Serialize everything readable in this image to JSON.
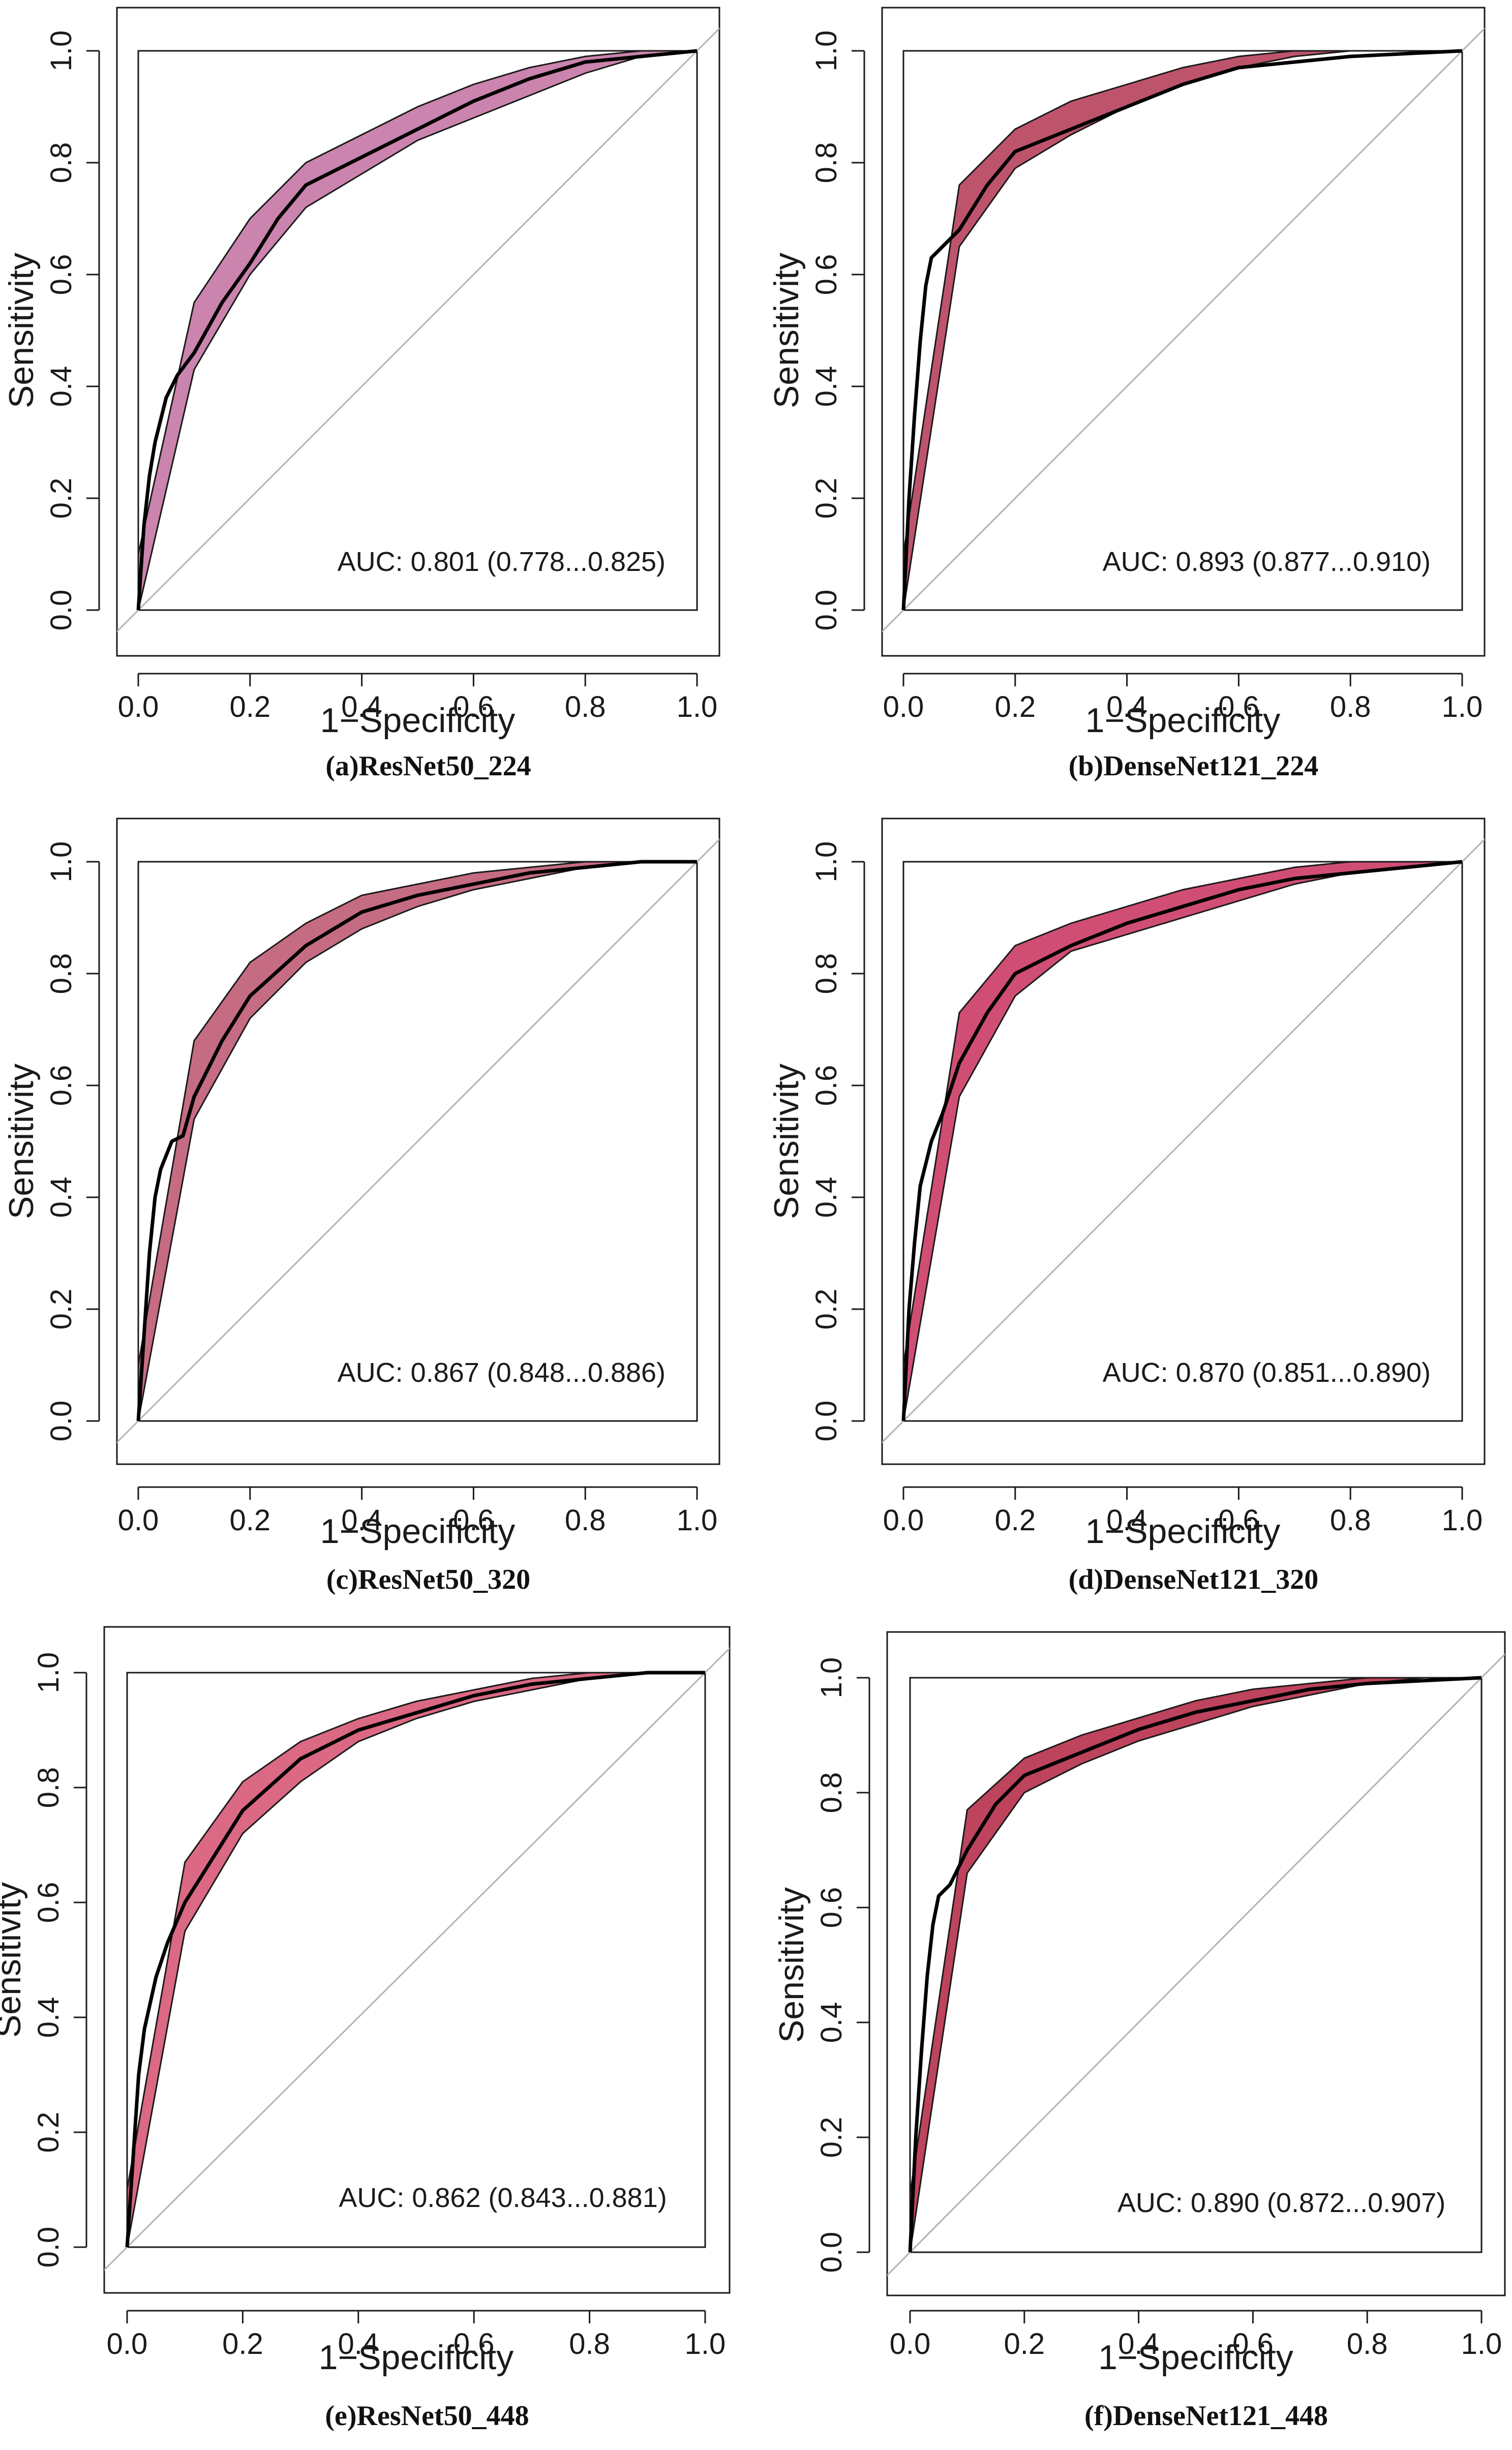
{
  "chart_data": [
    {
      "type": "line",
      "caption": "(a)ResNet50_224",
      "xlabel": "1−Specificity",
      "ylabel": "Sensitivity",
      "xlim": [
        0,
        1
      ],
      "ylim": [
        0,
        1
      ],
      "xticks": [
        "0.0",
        "0.2",
        "0.4",
        "0.6",
        "0.8",
        "1.0"
      ],
      "yticks": [
        "0.0",
        "0.2",
        "0.4",
        "0.6",
        "0.8",
        "1.0"
      ],
      "auc_label": "AUC: 0.801 (0.778...0.825)",
      "band_color": "#c57aa6",
      "curve_x": [
        0,
        0.01,
        0.02,
        0.03,
        0.05,
        0.07,
        0.1,
        0.15,
        0.2,
        0.25,
        0.3,
        0.4,
        0.5,
        0.6,
        0.7,
        0.8,
        0.9,
        1.0
      ],
      "curve_y": [
        0,
        0.15,
        0.24,
        0.3,
        0.38,
        0.42,
        0.46,
        0.55,
        0.62,
        0.7,
        0.76,
        0.81,
        0.86,
        0.91,
        0.95,
        0.98,
        0.99,
        1.0
      ],
      "band_x": [
        0,
        0.1,
        0.2,
        0.3,
        0.4,
        0.5,
        0.6,
        0.7,
        0.8,
        0.9,
        1.0
      ],
      "band_upper": [
        0.1,
        0.55,
        0.7,
        0.8,
        0.85,
        0.9,
        0.94,
        0.97,
        0.99,
        1.0,
        1.0
      ],
      "band_lower": [
        0,
        0.43,
        0.6,
        0.72,
        0.78,
        0.84,
        0.88,
        0.92,
        0.96,
        0.99,
        1.0
      ]
    },
    {
      "type": "line",
      "caption": "(b)DenseNet121_224",
      "xlabel": "1−Specificity",
      "ylabel": "Sensitivity",
      "xlim": [
        0,
        1
      ],
      "ylim": [
        0,
        1
      ],
      "xticks": [
        "0.0",
        "0.2",
        "0.4",
        "0.6",
        "0.8",
        "1.0"
      ],
      "yticks": [
        "0.0",
        "0.2",
        "0.4",
        "0.6",
        "0.8",
        "1.0"
      ],
      "auc_label": "AUC: 0.893 (0.877...0.910)",
      "band_color": "#b94560",
      "curve_x": [
        0,
        0.01,
        0.02,
        0.03,
        0.04,
        0.05,
        0.07,
        0.1,
        0.15,
        0.2,
        0.3,
        0.4,
        0.5,
        0.6,
        0.7,
        0.8,
        1.0
      ],
      "curve_y": [
        0,
        0.2,
        0.35,
        0.48,
        0.58,
        0.63,
        0.65,
        0.68,
        0.76,
        0.82,
        0.86,
        0.9,
        0.94,
        0.97,
        0.98,
        0.99,
        1.0
      ],
      "band_x": [
        0,
        0.1,
        0.2,
        0.3,
        0.4,
        0.5,
        0.6,
        0.7,
        0.8,
        0.9,
        1.0
      ],
      "band_upper": [
        0.1,
        0.76,
        0.86,
        0.91,
        0.94,
        0.97,
        0.99,
        1.0,
        1.0,
        1.0,
        1.0
      ],
      "band_lower": [
        0,
        0.65,
        0.79,
        0.85,
        0.9,
        0.94,
        0.97,
        0.99,
        1.0,
        1.0,
        1.0
      ]
    },
    {
      "type": "line",
      "caption": "(c)ResNet50_320",
      "xlabel": "1−Specificity",
      "ylabel": "Sensitivity",
      "xlim": [
        0,
        1
      ],
      "ylim": [
        0,
        1
      ],
      "xticks": [
        "0.0",
        "0.2",
        "0.4",
        "0.6",
        "0.8",
        "1.0"
      ],
      "yticks": [
        "0.0",
        "0.2",
        "0.4",
        "0.6",
        "0.8",
        "1.0"
      ],
      "auc_label": "AUC: 0.867 (0.848...0.886)",
      "band_color": "#c05f78",
      "curve_x": [
        0,
        0.01,
        0.02,
        0.03,
        0.04,
        0.06,
        0.08,
        0.1,
        0.15,
        0.2,
        0.3,
        0.4,
        0.5,
        0.6,
        0.7,
        0.8,
        0.9,
        1.0
      ],
      "curve_y": [
        0,
        0.15,
        0.3,
        0.4,
        0.45,
        0.5,
        0.51,
        0.58,
        0.68,
        0.76,
        0.85,
        0.91,
        0.94,
        0.96,
        0.98,
        0.99,
        1.0,
        1.0
      ],
      "band_x": [
        0,
        0.1,
        0.2,
        0.3,
        0.4,
        0.5,
        0.6,
        0.7,
        0.8,
        0.9,
        1.0
      ],
      "band_upper": [
        0.1,
        0.68,
        0.82,
        0.89,
        0.94,
        0.96,
        0.98,
        0.99,
        1.0,
        1.0,
        1.0
      ],
      "band_lower": [
        0,
        0.54,
        0.72,
        0.82,
        0.88,
        0.92,
        0.95,
        0.97,
        0.99,
        1.0,
        1.0
      ]
    },
    {
      "type": "line",
      "caption": "(d)DenseNet121_320",
      "xlabel": "1−Specificity",
      "ylabel": "Sensitivity",
      "xlim": [
        0,
        1
      ],
      "ylim": [
        0,
        1
      ],
      "xticks": [
        "0.0",
        "0.2",
        "0.4",
        "0.6",
        "0.8",
        "1.0"
      ],
      "yticks": [
        "0.0",
        "0.2",
        "0.4",
        "0.6",
        "0.8",
        "1.0"
      ],
      "auc_label": "AUC: 0.870 (0.851...0.890)",
      "band_color": "#cc3f68",
      "curve_x": [
        0,
        0.01,
        0.02,
        0.03,
        0.05,
        0.07,
        0.1,
        0.15,
        0.2,
        0.3,
        0.4,
        0.5,
        0.6,
        0.7,
        0.8,
        0.9,
        1.0
      ],
      "curve_y": [
        0,
        0.2,
        0.32,
        0.42,
        0.5,
        0.55,
        0.64,
        0.73,
        0.8,
        0.85,
        0.89,
        0.92,
        0.95,
        0.97,
        0.98,
        0.99,
        1.0
      ],
      "band_x": [
        0,
        0.1,
        0.2,
        0.3,
        0.4,
        0.5,
        0.6,
        0.7,
        0.8,
        0.9,
        1.0
      ],
      "band_upper": [
        0.1,
        0.73,
        0.85,
        0.89,
        0.92,
        0.95,
        0.97,
        0.99,
        1.0,
        1.0,
        1.0
      ],
      "band_lower": [
        0,
        0.58,
        0.76,
        0.84,
        0.87,
        0.9,
        0.93,
        0.96,
        0.98,
        0.99,
        1.0
      ]
    },
    {
      "type": "line",
      "caption": "(e)ResNet50_448",
      "xlabel": "1−Specificity",
      "ylabel": "Sensitivity",
      "xlim": [
        0,
        1
      ],
      "ylim": [
        0,
        1
      ],
      "xticks": [
        "0.0",
        "0.2",
        "0.4",
        "0.6",
        "0.8",
        "1.0"
      ],
      "yticks": [
        "0.0",
        "0.2",
        "0.4",
        "0.6",
        "0.8",
        "1.0"
      ],
      "auc_label": "AUC: 0.862 (0.843...0.881)",
      "band_color": "#d85c78",
      "curve_x": [
        0,
        0.01,
        0.02,
        0.03,
        0.05,
        0.07,
        0.1,
        0.15,
        0.2,
        0.3,
        0.4,
        0.5,
        0.6,
        0.7,
        0.8,
        0.9,
        1.0
      ],
      "curve_y": [
        0,
        0.15,
        0.3,
        0.38,
        0.47,
        0.53,
        0.6,
        0.68,
        0.76,
        0.85,
        0.9,
        0.93,
        0.96,
        0.98,
        0.99,
        1.0,
        1.0
      ],
      "band_x": [
        0,
        0.1,
        0.2,
        0.3,
        0.4,
        0.5,
        0.6,
        0.7,
        0.8,
        0.9,
        1.0
      ],
      "band_upper": [
        0.1,
        0.67,
        0.81,
        0.88,
        0.92,
        0.95,
        0.97,
        0.99,
        1.0,
        1.0,
        1.0
      ],
      "band_lower": [
        0,
        0.55,
        0.72,
        0.81,
        0.88,
        0.92,
        0.95,
        0.97,
        0.99,
        1.0,
        1.0
      ]
    },
    {
      "type": "line",
      "caption": "(f)DenseNet121_448",
      "xlabel": "1−Specificity",
      "ylabel": "Sensitivity",
      "xlim": [
        0,
        1
      ],
      "ylim": [
        0,
        1
      ],
      "xticks": [
        "0.0",
        "0.2",
        "0.4",
        "0.6",
        "0.8",
        "1.0"
      ],
      "yticks": [
        "0.0",
        "0.2",
        "0.4",
        "0.6",
        "0.8",
        "1.0"
      ],
      "auc_label": "AUC: 0.890 (0.872...0.907)",
      "band_color": "#b8334f",
      "curve_x": [
        0,
        0.01,
        0.02,
        0.03,
        0.04,
        0.05,
        0.07,
        0.1,
        0.15,
        0.2,
        0.3,
        0.4,
        0.5,
        0.6,
        0.7,
        0.8,
        1.0
      ],
      "curve_y": [
        0,
        0.2,
        0.35,
        0.48,
        0.57,
        0.62,
        0.64,
        0.7,
        0.78,
        0.83,
        0.87,
        0.91,
        0.94,
        0.96,
        0.98,
        0.99,
        1.0
      ],
      "band_x": [
        0,
        0.1,
        0.2,
        0.3,
        0.4,
        0.5,
        0.6,
        0.7,
        0.8,
        0.9,
        1.0
      ],
      "band_upper": [
        0.1,
        0.77,
        0.86,
        0.9,
        0.93,
        0.96,
        0.98,
        0.99,
        1.0,
        1.0,
        1.0
      ],
      "band_lower": [
        0,
        0.66,
        0.8,
        0.85,
        0.89,
        0.92,
        0.95,
        0.97,
        0.99,
        1.0,
        1.0
      ]
    }
  ]
}
